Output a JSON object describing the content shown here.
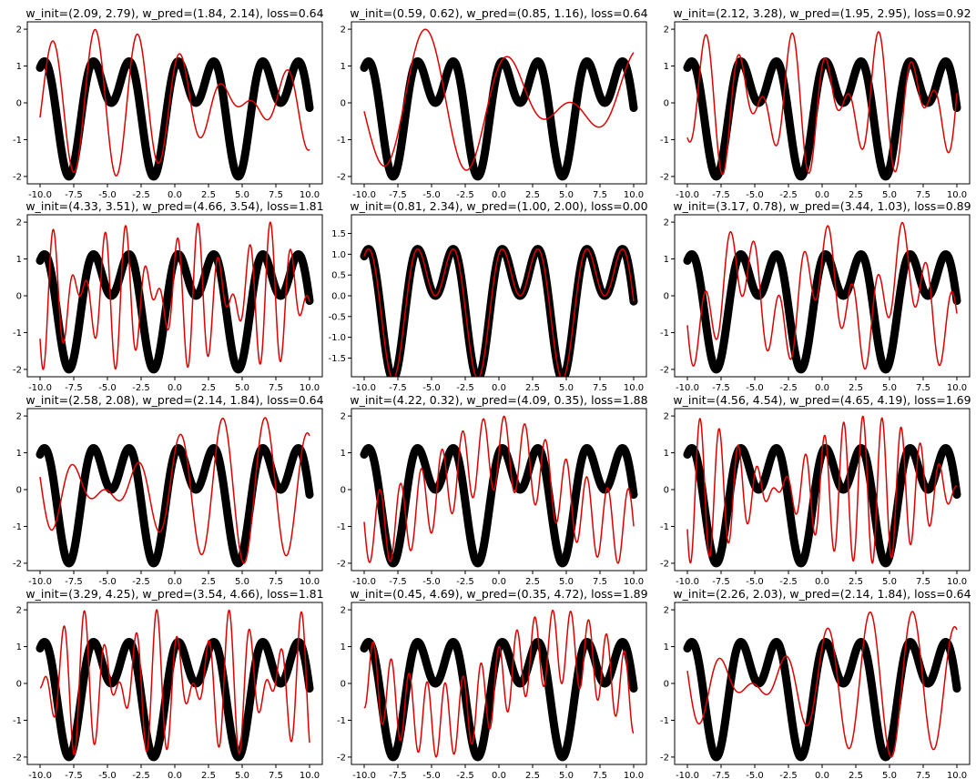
{
  "colors": {
    "target": "#000000",
    "prediction": "#dd0000",
    "background": "#ffffff",
    "axes": "#000000"
  },
  "chart_data": [
    {
      "type": "line",
      "title": "w_init=(2.09, 2.79), w_pred=(1.84, 2.14), loss=0.64",
      "w_pred": [
        1.84,
        2.14
      ],
      "xlim": [
        -10,
        10
      ],
      "ylim": [
        -2.2,
        2.2
      ],
      "x_ticks": [
        "-10.0",
        "-7.5",
        "-5.0",
        "-2.5",
        "0.0",
        "2.5",
        "5.0",
        "7.5",
        "10.0"
      ],
      "y_ticks": [
        "2",
        "1",
        "0",
        "-1",
        "-2"
      ],
      "target_w": [
        1.0,
        2.0
      ]
    },
    {
      "type": "line",
      "title": "w_init=(0.59, 0.62), w_pred=(0.85, 1.16), loss=0.64",
      "w_pred": [
        0.85,
        1.16
      ],
      "xlim": [
        -10,
        10
      ],
      "ylim": [
        -2.2,
        2.2
      ],
      "x_ticks": [
        "-10.0",
        "-7.5",
        "-5.0",
        "-2.5",
        "0.0",
        "2.5",
        "5.0",
        "7.5",
        "10.0"
      ],
      "y_ticks": [
        "2",
        "1",
        "0",
        "-1",
        "-2"
      ],
      "target_w": [
        1.0,
        2.0
      ]
    },
    {
      "type": "line",
      "title": "w_init=(2.12, 3.28), w_pred=(1.95, 2.95), loss=0.92",
      "w_pred": [
        1.95,
        2.95
      ],
      "xlim": [
        -10,
        10
      ],
      "ylim": [
        -2.2,
        2.2
      ],
      "x_ticks": [
        "-10.0",
        "-7.5",
        "-5.0",
        "-2.5",
        "0.0",
        "2.5",
        "5.0",
        "7.5",
        "10.0"
      ],
      "y_ticks": [
        "2",
        "1",
        "0",
        "-1",
        "-2"
      ],
      "target_w": [
        1.0,
        2.0
      ]
    },
    {
      "type": "line",
      "title": "w_init=(4.33, 3.51), w_pred=(4.66, 3.54), loss=1.81",
      "w_pred": [
        4.66,
        3.54
      ],
      "xlim": [
        -10,
        10
      ],
      "ylim": [
        -2.2,
        2.2
      ],
      "x_ticks": [
        "-10.0",
        "-7.5",
        "-5.0",
        "-2.5",
        "0.0",
        "2.5",
        "5.0",
        "7.5",
        "10.0"
      ],
      "y_ticks": [
        "2",
        "1",
        "0",
        "-1",
        "-2"
      ],
      "target_w": [
        1.0,
        2.0
      ]
    },
    {
      "type": "line",
      "title": "w_init=(0.81, 2.34), w_pred=(1.00, 2.00), loss=0.00",
      "w_pred": [
        1.0,
        2.0
      ],
      "xlim": [
        -10,
        10
      ],
      "ylim": [
        -1.95,
        1.95
      ],
      "x_ticks": [
        "-10.0",
        "-7.5",
        "-5.0",
        "-2.5",
        "0.0",
        "2.5",
        "5.0",
        "7.5",
        "10.0"
      ],
      "y_ticks": [
        "1.5",
        "1.0",
        "0.5",
        "0.0",
        "-0.5",
        "-1.0",
        "-1.5"
      ],
      "target_w": [
        1.0,
        2.0
      ]
    },
    {
      "type": "line",
      "title": "w_init=(3.17, 0.78), w_pred=(3.44, 1.03), loss=0.89",
      "w_pred": [
        3.44,
        1.03
      ],
      "xlim": [
        -10,
        10
      ],
      "ylim": [
        -2.2,
        2.2
      ],
      "x_ticks": [
        "-10.0",
        "-7.5",
        "-5.0",
        "-2.5",
        "0.0",
        "2.5",
        "5.0",
        "7.5",
        "10.0"
      ],
      "y_ticks": [
        "2",
        "1",
        "0",
        "-1",
        "-2"
      ],
      "target_w": [
        1.0,
        2.0
      ]
    },
    {
      "type": "line",
      "title": "w_init=(2.58, 2.08), w_pred=(2.14, 1.84), loss=0.64",
      "w_pred": [
        2.14,
        1.84
      ],
      "xlim": [
        -10,
        10
      ],
      "ylim": [
        -2.2,
        2.2
      ],
      "x_ticks": [
        "-10.0",
        "-7.5",
        "-5.0",
        "-2.5",
        "0.0",
        "2.5",
        "5.0",
        "7.5",
        "10.0"
      ],
      "y_ticks": [
        "2",
        "1",
        "0",
        "-1",
        "-2"
      ],
      "target_w": [
        1.0,
        2.0
      ]
    },
    {
      "type": "line",
      "title": "w_init=(4.22, 0.32), w_pred=(4.09, 0.35), loss=1.88",
      "w_pred": [
        4.09,
        0.35
      ],
      "xlim": [
        -10,
        10
      ],
      "ylim": [
        -2.2,
        2.2
      ],
      "x_ticks": [
        "-10.0",
        "-7.5",
        "-5.0",
        "-2.5",
        "0.0",
        "2.5",
        "5.0",
        "7.5",
        "10.0"
      ],
      "y_ticks": [
        "2",
        "1",
        "0",
        "-1",
        "-2"
      ],
      "target_w": [
        1.0,
        2.0
      ]
    },
    {
      "type": "line",
      "title": "w_init=(4.56, 4.54), w_pred=(4.65, 4.19), loss=1.69",
      "w_pred": [
        4.65,
        4.19
      ],
      "xlim": [
        -10,
        10
      ],
      "ylim": [
        -2.2,
        2.2
      ],
      "x_ticks": [
        "-10.0",
        "-7.5",
        "-5.0",
        "-2.5",
        "0.0",
        "2.5",
        "5.0",
        "7.5",
        "10.0"
      ],
      "y_ticks": [
        "2",
        "1",
        "0",
        "-1",
        "-2"
      ],
      "target_w": [
        1.0,
        2.0
      ]
    },
    {
      "type": "line",
      "title": "w_init=(3.29, 4.25), w_pred=(3.54, 4.66), loss=1.81",
      "w_pred": [
        3.54,
        4.66
      ],
      "xlim": [
        -10,
        10
      ],
      "ylim": [
        -2.2,
        2.2
      ],
      "x_ticks": [
        "-10.0",
        "-7.5",
        "-5.0",
        "-2.5",
        "0.0",
        "2.5",
        "5.0",
        "7.5",
        "10.0"
      ],
      "y_ticks": [
        "2",
        "1",
        "0",
        "-1",
        "-2"
      ],
      "target_w": [
        1.0,
        2.0
      ]
    },
    {
      "type": "line",
      "title": "w_init=(0.45, 4.69), w_pred=(0.35, 4.72), loss=1.89",
      "w_pred": [
        0.35,
        4.72
      ],
      "xlim": [
        -10,
        10
      ],
      "ylim": [
        -2.2,
        2.2
      ],
      "x_ticks": [
        "-10.0",
        "-7.5",
        "-5.0",
        "-2.5",
        "0.0",
        "2.5",
        "5.0",
        "7.5",
        "10.0"
      ],
      "y_ticks": [
        "2",
        "1",
        "0",
        "-1",
        "-2"
      ],
      "target_w": [
        1.0,
        2.0
      ]
    },
    {
      "type": "line",
      "title": "w_init=(2.26, 2.03), w_pred=(2.14, 1.84), loss=0.64",
      "w_pred": [
        2.14,
        1.84
      ],
      "xlim": [
        -10,
        10
      ],
      "ylim": [
        -2.2,
        2.2
      ],
      "x_ticks": [
        "-10.0",
        "-7.5",
        "-5.0",
        "-2.5",
        "0.0",
        "2.5",
        "5.0",
        "7.5",
        "10.0"
      ],
      "y_ticks": [
        "2",
        "1",
        "0",
        "-1",
        "-2"
      ],
      "target_w": [
        1.0,
        2.0
      ]
    }
  ]
}
